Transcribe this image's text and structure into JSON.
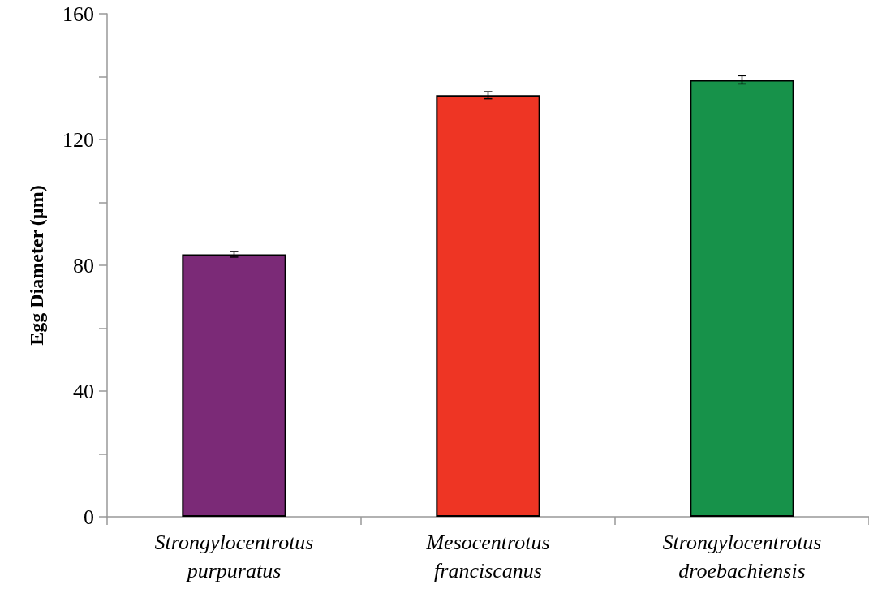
{
  "chart_data": {
    "type": "bar",
    "ylabel": "Egg Diameter (µm)",
    "categories": [
      "Strongylocentrotus\npurpuratus",
      "Mesocentrotus\nfranciscanus",
      "Strongylocentrotus\ndroebachiensis"
    ],
    "values": [
      83.5,
      134.1,
      139.0
    ],
    "errors": [
      0.9,
      1.1,
      1.3
    ],
    "colors": [
      "#7b2a77",
      "#ee3524",
      "#17924a"
    ],
    "ylim": [
      0,
      160
    ],
    "yticks": [
      0,
      {
        "value": 20,
        "label": null
      },
      40,
      {
        "value": 60,
        "label": null
      },
      80,
      {
        "value": 100,
        "label": null
      },
      120,
      {
        "value": 140,
        "label": null
      },
      160
    ],
    "grid": false
  }
}
